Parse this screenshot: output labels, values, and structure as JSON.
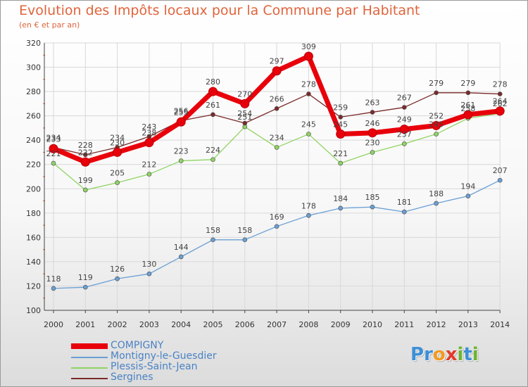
{
  "header": {
    "title": "Evolution des Impôts locaux pour la Commune par Habitant",
    "subtitle": "(en € et par an)"
  },
  "colors": {
    "title": "#e0643c",
    "legend_text": "#4a82c4",
    "grid": "#d8d8d8",
    "axis": "#444444",
    "tick_marks": "#e0643c"
  },
  "logo": {
    "text": "Proxiti",
    "letter_colors": [
      "#3d8fd6",
      "#3d8fd6",
      "#f39a1e",
      "#e23b2a",
      "#6cb52d",
      "#3d8fd6",
      "#6cb52d"
    ]
  },
  "chart_data": {
    "type": "line",
    "title": "Evolution des Impôts locaux pour la Commune par Habitant",
    "subtitle": "(en € et par an)",
    "xlabel": "",
    "ylabel": "",
    "x": [
      2000,
      2001,
      2002,
      2003,
      2004,
      2005,
      2006,
      2007,
      2008,
      2009,
      2010,
      2011,
      2012,
      2013,
      2014
    ],
    "ylim": [
      100,
      320
    ],
    "yticks": [
      100,
      120,
      140,
      160,
      180,
      200,
      220,
      240,
      260,
      280,
      300,
      320
    ],
    "grid": true,
    "legend_position": "bottom-left",
    "series": [
      {
        "name": "COMPIGNY",
        "color": "#e8000b",
        "emphasis": true,
        "values": [
          233,
          222,
          230,
          238,
          255,
          280,
          270,
          297,
          309,
          245,
          246,
          249,
          252,
          261,
          264
        ]
      },
      {
        "name": "Montigny-le-Guesdier",
        "color": "#6a9fd4",
        "values": [
          118,
          119,
          126,
          130,
          144,
          158,
          158,
          169,
          178,
          184,
          185,
          181,
          188,
          194,
          207
        ]
      },
      {
        "name": "Plessis-Saint-Jean",
        "color": "#8fd463",
        "values": [
          221,
          199,
          205,
          212,
          223,
          224,
          251,
          234,
          245,
          221,
          230,
          237,
          245,
          258,
          262
        ]
      },
      {
        "name": "Sergines",
        "color": "#7a2a2a",
        "values": [
          234,
          228,
          234,
          243,
          256,
          261,
          254,
          266,
          278,
          259,
          263,
          267,
          279,
          279,
          278
        ]
      }
    ]
  }
}
